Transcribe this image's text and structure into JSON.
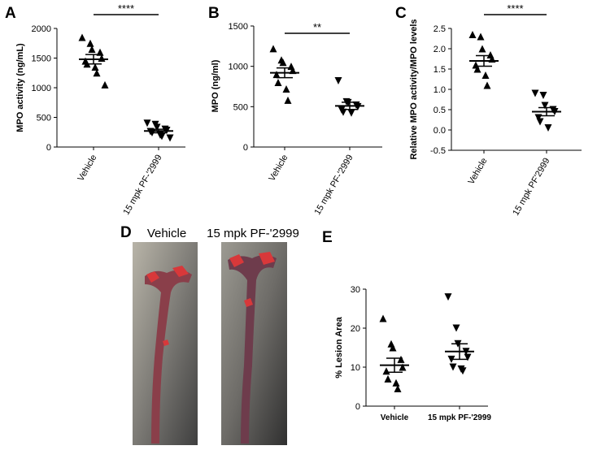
{
  "chart_data": [
    {
      "type": "dot",
      "panel": "A",
      "ylabel": "MPO activity (ng/mL)",
      "categories": [
        "Vehicle",
        "15 mpk PF-'2999"
      ],
      "groups": [
        {
          "marker": "triangle-up",
          "values": [
            1850,
            1750,
            1650,
            1600,
            1500,
            1450,
            1400,
            1350,
            1250,
            1050
          ],
          "mean": 1480,
          "sem": 80
        },
        {
          "marker": "triangle-down",
          "values": [
            400,
            380,
            330,
            300,
            280,
            260,
            240,
            200,
            180,
            150
          ],
          "mean": 270,
          "sem": 30
        }
      ],
      "ylim": [
        0,
        2000
      ],
      "yticks": [
        0,
        500,
        1000,
        1500,
        2000
      ],
      "significance": "****",
      "color": "#000000"
    },
    {
      "type": "dot",
      "panel": "B",
      "ylabel": "MPO (ng/ml)",
      "categories": [
        "Vehicle",
        "15 mpk PF-'2999"
      ],
      "groups": [
        {
          "marker": "triangle-up",
          "values": [
            1220,
            1080,
            1050,
            1000,
            950,
            900,
            800,
            720,
            580
          ],
          "mean": 920,
          "sem": 60
        },
        {
          "marker": "triangle-down",
          "values": [
            820,
            560,
            550,
            520,
            500,
            460,
            430,
            420
          ],
          "mean": 510,
          "sem": 45
        }
      ],
      "ylim": [
        0,
        1500
      ],
      "yticks": [
        0,
        500,
        1000,
        1500
      ],
      "significance": "**",
      "color": "#000000"
    },
    {
      "type": "dot",
      "panel": "C",
      "ylabel": "Relative MPO activity/MPO levels",
      "categories": [
        "Vehicle",
        "15 mpk PF'2999"
      ],
      "groups": [
        {
          "marker": "triangle-up",
          "values": [
            2.35,
            2.3,
            2.0,
            1.85,
            1.75,
            1.6,
            1.5,
            1.35,
            1.1
          ],
          "mean": 1.7,
          "sem": 0.13
        },
        {
          "marker": "triangle-down",
          "values": [
            0.9,
            0.85,
            0.6,
            0.5,
            0.45,
            0.3,
            0.2,
            0.05
          ],
          "mean": 0.45,
          "sem": 0.1
        }
      ],
      "ylim": [
        -0.5,
        2.5
      ],
      "yticks": [
        -0.5,
        {
          "value": 0,
          "label": "0.0"
        },
        0.5,
        {
          "value": 1,
          "label": "1.0"
        },
        1.5,
        {
          "value": 2,
          "label": "2.0"
        },
        2.5
      ],
      "significance": "****",
      "color": "#000000"
    },
    {
      "type": "dot",
      "panel": "E",
      "ylabel": "% Lesion Area",
      "categories": [
        "Vehicle",
        "15 mpk PF-'2999"
      ],
      "groups": [
        {
          "marker": "triangle-up",
          "values": [
            22.5,
            16,
            15,
            12,
            10,
            9,
            7,
            6,
            4.5
          ],
          "mean": 10.5,
          "sem": 1.8
        },
        {
          "marker": "triangle-down",
          "values": [
            28,
            20,
            16,
            14,
            12.5,
            12,
            10,
            9.5,
            9
          ],
          "mean": 14,
          "sem": 2
        }
      ],
      "ylim": [
        0,
        30
      ],
      "yticks": [
        0,
        10,
        20,
        30
      ],
      "color": "#000000"
    }
  ],
  "image_panel": {
    "label": "D",
    "captions": [
      "Vehicle",
      "15 mpk PF-'2999"
    ]
  }
}
